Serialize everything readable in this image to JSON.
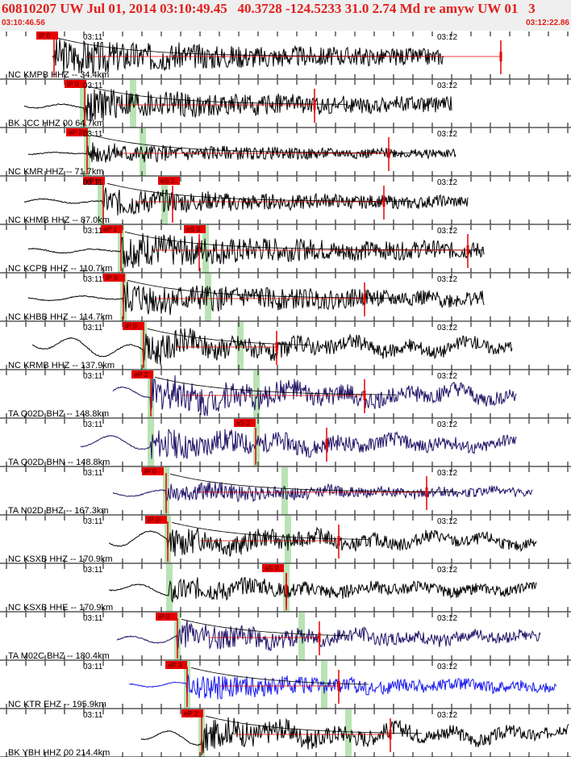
{
  "header": {
    "title": "60810207 UW Jul 01, 2014 03:10:49.45   40.3728 -124.5233 31.0 2.74 Md re amyw UW 01   3",
    "start_time": "03:10:46.56",
    "end_time": "03:12:22.86"
  },
  "colors": {
    "header_text": "#e0201c",
    "pick": "#e60000",
    "phase_band": "#b9e3b4",
    "trace_black": "#000000",
    "trace_navy": "#221166",
    "trace_blue": "#1a1aee"
  },
  "traces": [
    {
      "label": "NC KMPB HHZ -- 34.4km",
      "p_pick": "iP 0",
      "s_pick": "",
      "color": "black",
      "tl": "03:11",
      "tr": "03:12"
    },
    {
      "label": "BK JCC HHZ 00 64.7km",
      "p_pick": "iP 0",
      "s_pick": "",
      "color": "black",
      "tl": "03:11",
      "tr": "03:12"
    },
    {
      "label": "NC KMR HHZ -- 71.7km",
      "p_pick": "eP 2",
      "s_pick": "",
      "color": "black",
      "tl": "03:11",
      "tr": "03:12"
    },
    {
      "label": "NC KHMB HHZ -- 87.0km",
      "p_pick": "eP 0",
      "s_pick": "eS 2",
      "color": "black",
      "tl": "03:11",
      "tr": "03:12"
    },
    {
      "label": "NC KCPB HHZ -- 110.7km",
      "p_pick": "eP 1",
      "s_pick": "eS 3",
      "color": "black",
      "tl": "03:11",
      "tr": "03:12"
    },
    {
      "label": "NC KHBB HHZ -- 114.7km",
      "p_pick": "iP 0",
      "s_pick": "",
      "color": "black",
      "tl": "03:11",
      "tr": "03:12"
    },
    {
      "label": "NC KRMB HHZ -- 137.9km",
      "p_pick": "iP 0",
      "s_pick": "",
      "color": "black",
      "tl": "03:11",
      "tr": "03:12"
    },
    {
      "label": "TA Q02D BHZ -- 148.8km",
      "p_pick": "eP 2",
      "s_pick": "",
      "color": "navy",
      "tl": "03:11",
      "tr": "03:12"
    },
    {
      "label": "TA Q02D BHN -- 148.8km",
      "p_pick": "",
      "s_pick": "eS 2",
      "color": "navy",
      "tl": "03:11",
      "tr": "03:12"
    },
    {
      "label": "TA N02D BHZ -- 167.3km",
      "p_pick": "iP 0",
      "s_pick": "",
      "color": "navy",
      "tl": "03:11",
      "tr": "03:12"
    },
    {
      "label": "NC KSXB HHZ -- 170.9km",
      "p_pick": "iP 0",
      "s_pick": "",
      "color": "black",
      "tl": "03:11",
      "tr": "03:12"
    },
    {
      "label": "NC KSXB HHE -- 170.9km",
      "p_pick": "",
      "s_pick": "eS 2",
      "color": "black",
      "tl": "03:11",
      "tr": "03:12"
    },
    {
      "label": "TA M02C BHZ -- 180.4km",
      "p_pick": "iP 0",
      "s_pick": "",
      "color": "navy",
      "tl": "03:11",
      "tr": "03:12"
    },
    {
      "label": "NC KTR EHZ -- 195.9km",
      "p_pick": "eP 3",
      "s_pick": "",
      "color": "blue",
      "tl": "03:11",
      "tr": "03:12"
    },
    {
      "label": "BK YBH HHZ 00 214.4km",
      "p_pick": "eP 2",
      "s_pick": "",
      "color": "black",
      "tl": "03:11",
      "tr": "03:12"
    }
  ]
}
